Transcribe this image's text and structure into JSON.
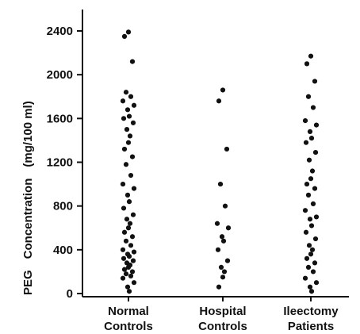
{
  "chart_data": {
    "type": "scatter",
    "title": "",
    "ylabel": "PEG Concentration (mg/100 ml)",
    "ylabel_parts": [
      "PEG",
      "Concentration",
      "(mg/100 ml)"
    ],
    "xlabel": "",
    "ylim": [
      0,
      2500
    ],
    "yticks": [
      0,
      400,
      800,
      1200,
      1600,
      2000,
      2400
    ],
    "ytick_labels": [
      "0",
      "400",
      "800",
      "1200",
      "1600",
      "2000",
      "2400"
    ],
    "categories": [
      [
        "Normal",
        "Controls"
      ],
      [
        "Hospital",
        "Controls"
      ],
      [
        "Ileectomy",
        "Patients"
      ]
    ],
    "grid": false,
    "legend": "none",
    "colors": {
      "marker": "#111111",
      "axis": "#111111"
    },
    "series": [
      {
        "values": [
          2390,
          2350,
          2120,
          1840,
          1800,
          1760,
          1720,
          1680,
          1620,
          1600,
          1560,
          1500,
          1440,
          1380,
          1320,
          1250,
          1180,
          1080,
          1000,
          960,
          900,
          840,
          780,
          720,
          680,
          640,
          600,
          560,
          520,
          480,
          440,
          400,
          380,
          360,
          340,
          320,
          300,
          280,
          260,
          240,
          220,
          200,
          180,
          160,
          140,
          100,
          60,
          20
        ]
      },
      {
        "values": [
          1860,
          1760,
          1320,
          1000,
          800,
          640,
          600,
          520,
          480,
          400,
          300,
          240,
          200,
          150,
          60
        ]
      },
      {
        "values": [
          2170,
          2100,
          1940,
          1800,
          1700,
          1580,
          1540,
          1480,
          1420,
          1380,
          1290,
          1220,
          1120,
          1050,
          1000,
          960,
          900,
          820,
          760,
          700,
          680,
          620,
          560,
          500,
          440,
          400,
          360,
          320,
          280,
          240,
          200,
          140,
          100,
          60,
          20
        ]
      }
    ]
  }
}
